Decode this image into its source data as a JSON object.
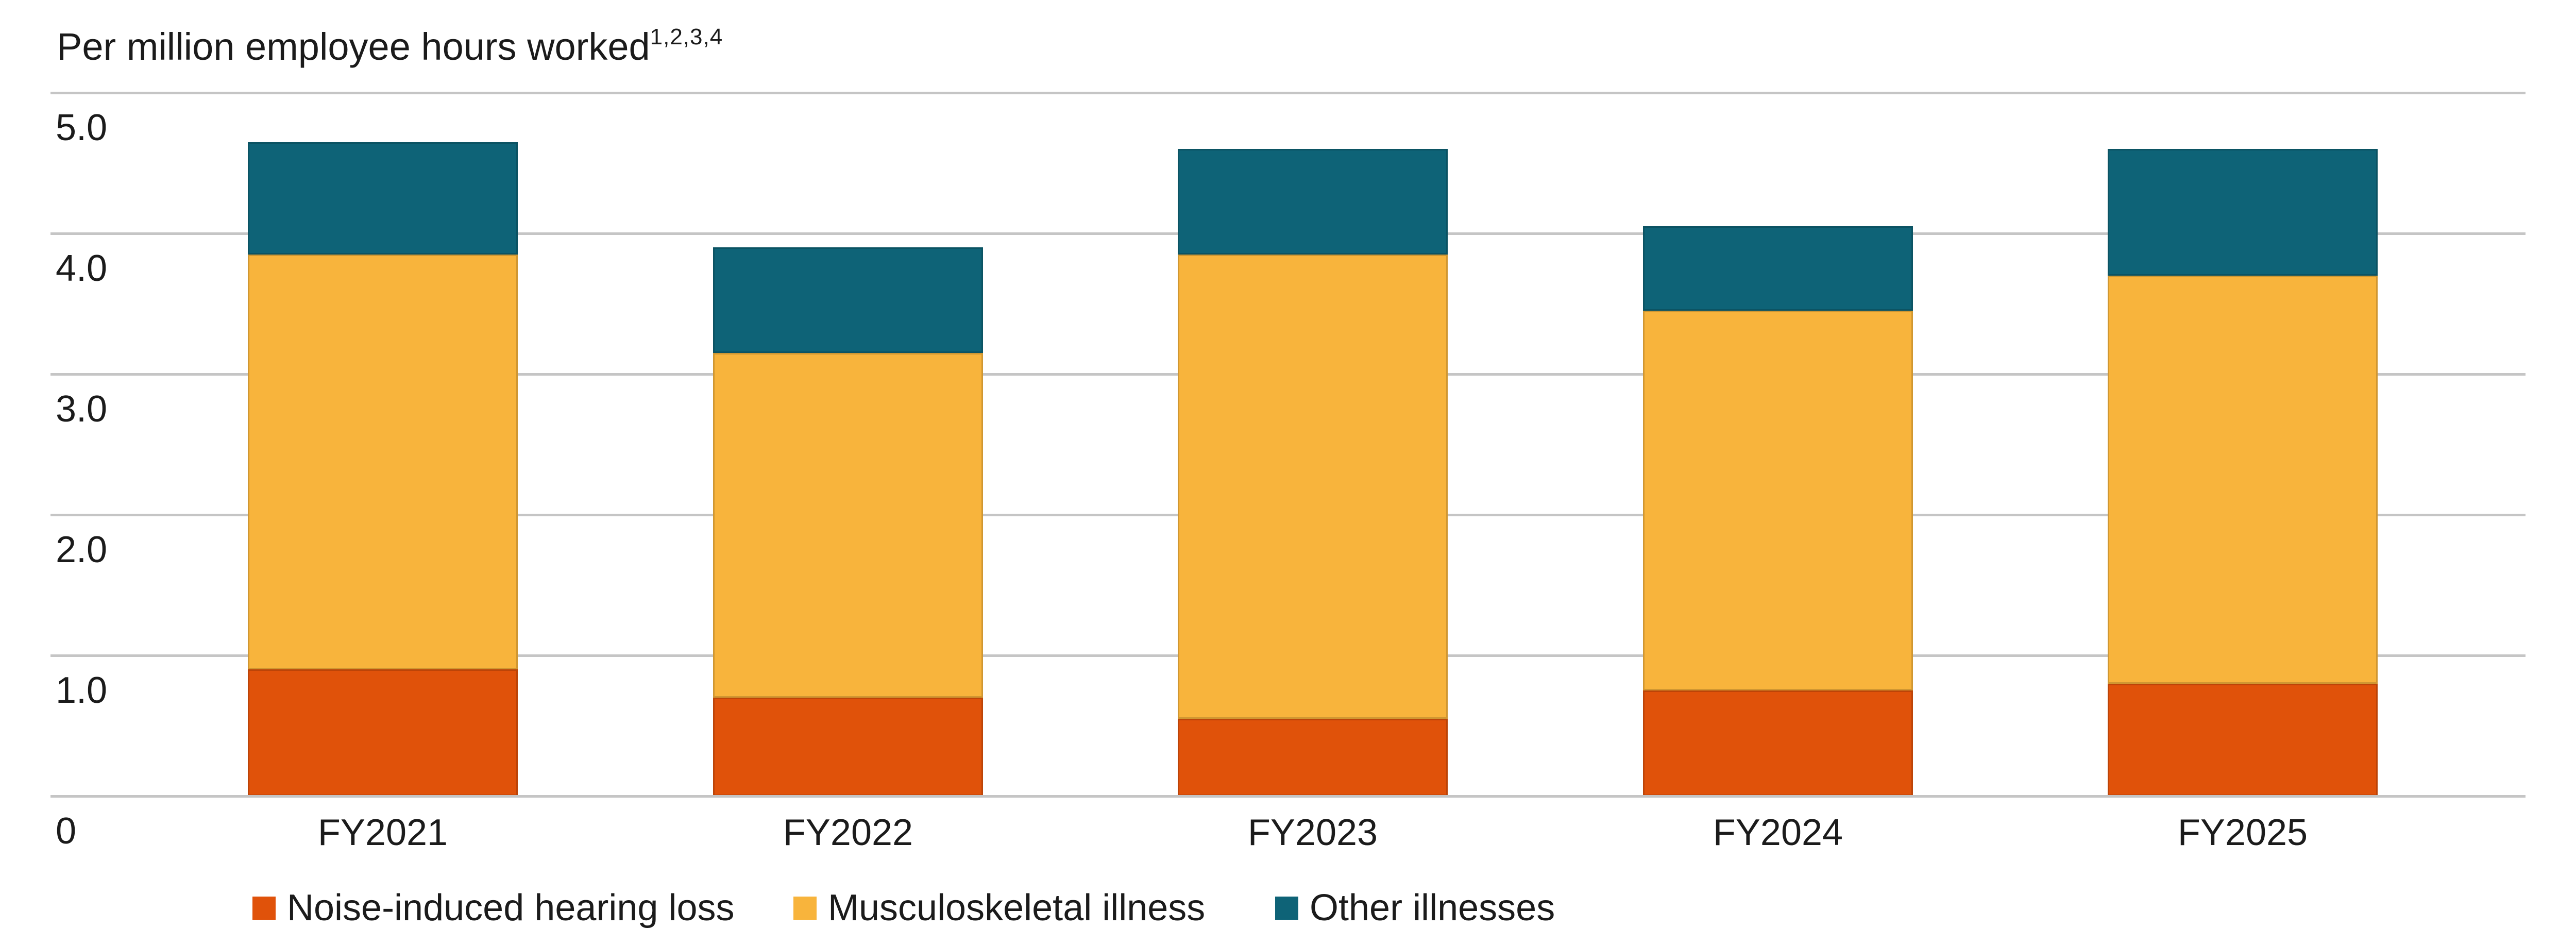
{
  "title": {
    "text": "Per million employee hours worked",
    "superscript": "1,2,3,4"
  },
  "chart_data": {
    "type": "bar",
    "stacked": true,
    "title": "Per million employee hours worked",
    "title_footnote_markers": "1,2,3,4",
    "categories": [
      "FY2021",
      "FY2022",
      "FY2023",
      "FY2024",
      "FY2025"
    ],
    "series": [
      {
        "name": "Noise-induced hearing loss",
        "color": "#E0520A",
        "values": [
          0.9,
          0.7,
          0.55,
          0.75,
          0.8
        ]
      },
      {
        "name": "Musculoskeletal illness",
        "color": "#F8B43C",
        "values": [
          2.95,
          2.45,
          3.3,
          2.7,
          2.9
        ]
      },
      {
        "name": "Other illnesses",
        "color": "#0E6377",
        "values": [
          0.8,
          0.75,
          0.75,
          0.6,
          0.9
        ]
      }
    ],
    "stack_totals": [
      4.65,
      3.9,
      4.6,
      4.05,
      4.6
    ],
    "y_axis": {
      "min": 0,
      "max": 5.0,
      "tick_labels": [
        "5.0",
        "4.0",
        "3.0",
        "2.0",
        "1.0",
        "0"
      ],
      "tick_values": [
        5,
        4,
        3,
        2,
        1,
        0
      ]
    },
    "grid": "horizontal",
    "gridline_color": "#C5C5C5",
    "legend_position": "bottom",
    "text_color": "#1B1B1B",
    "background_color": "#FFFFFF"
  }
}
